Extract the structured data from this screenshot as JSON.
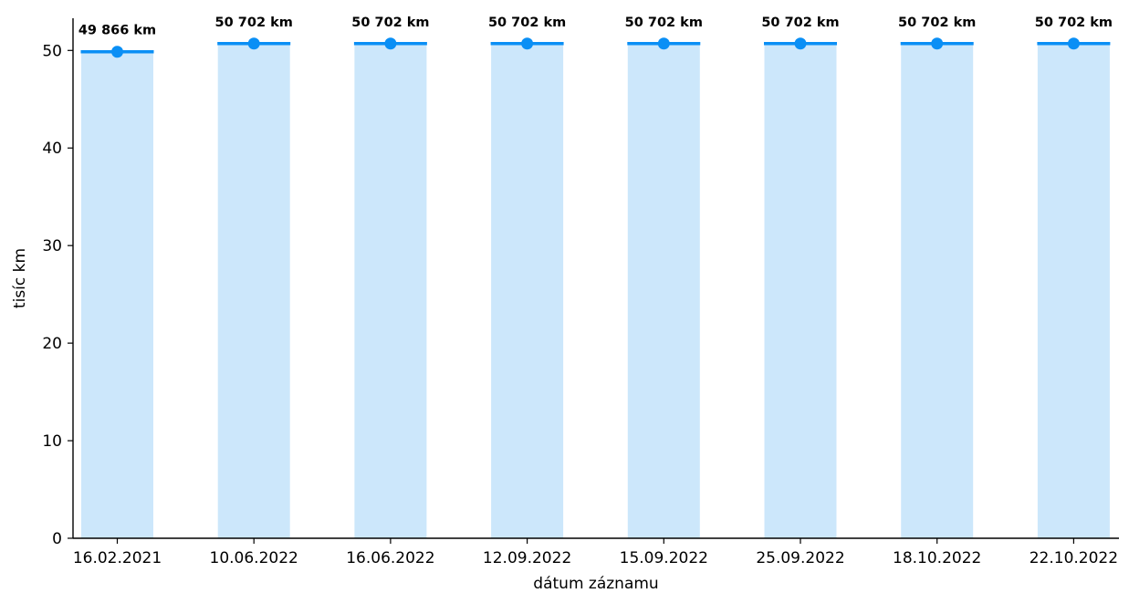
{
  "chart_data": {
    "type": "bar",
    "categories": [
      "16.02.2021",
      "10.06.2022",
      "16.06.2022",
      "12.09.2022",
      "15.09.2022",
      "25.09.2022",
      "18.10.2022",
      "22.10.2022"
    ],
    "values": [
      49.866,
      50.702,
      50.702,
      50.702,
      50.702,
      50.702,
      50.702,
      50.702
    ],
    "data_labels": [
      "49 866 km",
      "50 702 km",
      "50 702 km",
      "50 702 km",
      "50 702 km",
      "50 702 km",
      "50 702 km",
      "50 702 km"
    ],
    "xlabel": "dátum záznamu",
    "ylabel": "tisíc km",
    "ylim": [
      0,
      53.3
    ],
    "yticks": [
      0,
      10,
      20,
      30,
      40,
      50
    ],
    "grid": false,
    "legend": "none",
    "colors": {
      "bar_fill": "#cce7fb",
      "marker": "#0a8ff5",
      "axis": "#000000"
    }
  }
}
